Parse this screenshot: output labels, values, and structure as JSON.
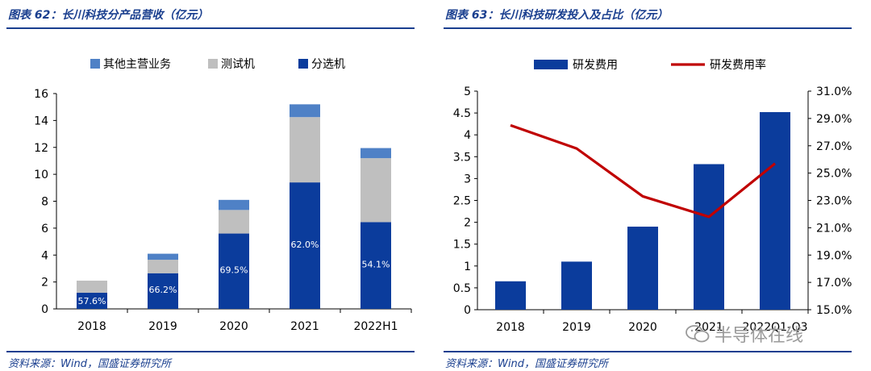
{
  "colors": {
    "title": "#1a3f8f",
    "sorting": "#0b3c9c",
    "testing": "#bfbfbf",
    "other": "#4f81c6",
    "rd_bar": "#0b3c9c",
    "rd_line": "#c00000"
  },
  "left": {
    "title": "图表 62：长川科技分产品营收（亿元）",
    "source": "资料来源：Wind，国盛证券研究所",
    "chart_data": {
      "type": "bar",
      "stacked": true,
      "categories": [
        "2018",
        "2019",
        "2020",
        "2021",
        "2022H1"
      ],
      "series": [
        {
          "name": "分选机",
          "values": [
            1.2,
            2.65,
            5.6,
            9.4,
            6.45
          ]
        },
        {
          "name": "测试机",
          "values": [
            0.9,
            1.0,
            1.75,
            4.85,
            4.75
          ]
        },
        {
          "name": "其他主营业务",
          "values": [
            0.0,
            0.45,
            0.75,
            0.95,
            0.75
          ]
        }
      ],
      "data_labels": [
        "57.6%",
        "66.2%",
        "69.5%",
        "62.0%",
        "54.1%"
      ],
      "legend": [
        "其他主营业务",
        "测试机",
        "分选机"
      ],
      "ylim": [
        0,
        16
      ],
      "yticks": [
        "0",
        "2",
        "4",
        "6",
        "8",
        "10",
        "12",
        "14",
        "16"
      ]
    }
  },
  "right": {
    "title": "图表 63：长川科技研发投入及占比（亿元）",
    "source": "资料来源：Wind，国盛证券研究所",
    "chart_data": {
      "type": "bar+line",
      "categories": [
        "2018",
        "2019",
        "2020",
        "2021",
        "2022Q1-Q3"
      ],
      "series": [
        {
          "name": "研发费用",
          "type": "bar",
          "axis": "left",
          "values": [
            0.65,
            1.1,
            1.9,
            3.33,
            4.52
          ]
        },
        {
          "name": "研发费用率",
          "type": "line",
          "axis": "right",
          "values": [
            28.5,
            26.8,
            23.3,
            21.8,
            25.7
          ]
        }
      ],
      "legend": [
        "研发费用",
        "研发费用率"
      ],
      "ylim_left": [
        0,
        5
      ],
      "yticks_left": [
        "0",
        "0.5",
        "1",
        "1.5",
        "2",
        "2.5",
        "3",
        "3.5",
        "4",
        "4.5",
        "5"
      ],
      "ylim_right": [
        15,
        31
      ],
      "yticks_right": [
        "15.0%",
        "17.0%",
        "19.0%",
        "21.0%",
        "23.0%",
        "25.0%",
        "27.0%",
        "29.0%",
        "31.0%"
      ]
    }
  },
  "watermark": {
    "text": "半导体在线",
    "icon": "wechat-icon"
  }
}
